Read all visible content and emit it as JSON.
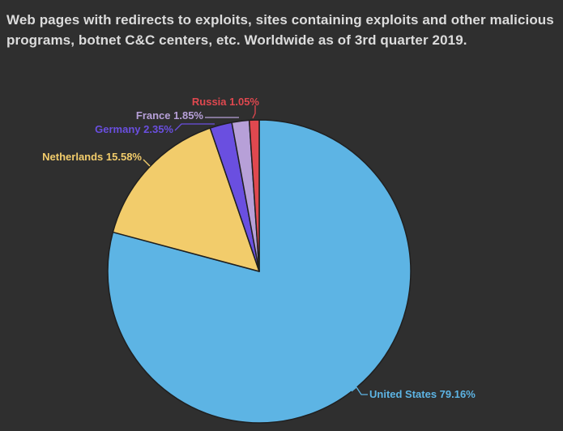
{
  "chart_data": {
    "type": "pie",
    "title": "Web pages with redirects to exploits, sites containing exploits and other malicious programs, botnet C&C centers, etc. Worldwide as of 3rd quarter 2019.",
    "slices": [
      {
        "label": "United States",
        "value": 79.16,
        "display": "United States 79.16%",
        "color": "#5db4e4"
      },
      {
        "label": "Netherlands",
        "value": 15.58,
        "display": "Netherlands 15.58%",
        "color": "#f2cc6b"
      },
      {
        "label": "Germany",
        "value": 2.35,
        "display": "Germany 2.35%",
        "color": "#6a4fe0"
      },
      {
        "label": "France",
        "value": 1.85,
        "display": "France 1.85%",
        "color": "#b7a0d8"
      },
      {
        "label": "Russia",
        "value": 1.05,
        "display": "Russia 1.05%",
        "color": "#e0484f"
      }
    ],
    "legend": "none"
  }
}
